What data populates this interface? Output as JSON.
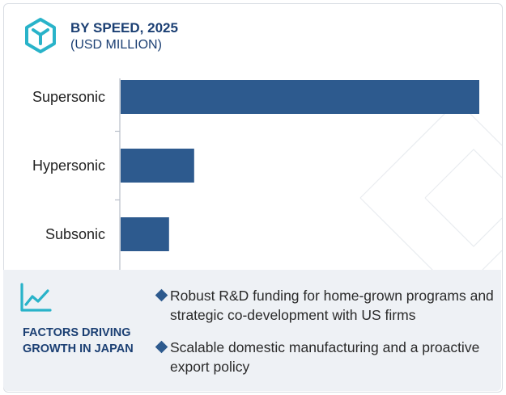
{
  "header": {
    "title": "BY SPEED, 2025",
    "subtitle": "(USD MILLION)"
  },
  "chart_data": {
    "type": "bar",
    "orientation": "horizontal",
    "title": "BY SPEED, 2025",
    "subtitle": "(USD MILLION)",
    "categories": [
      "Supersonic",
      "Hypersonic",
      "Subsonic"
    ],
    "values": [
      100,
      20.5,
      13.5
    ],
    "xlabel": "",
    "ylabel": "",
    "xlim": [
      0,
      100
    ],
    "grid": false,
    "legend": "none",
    "bar_color": "#2d5a8e"
  },
  "factors": {
    "title": "FACTORS DRIVING GROWTH IN JAPAN",
    "icon": "trend-line-icon",
    "items": [
      "Robust R&D funding for home-grown programs and strategic co-development with US firms",
      "Scalable domestic manufacturing and a proactive export policy"
    ]
  },
  "colors": {
    "accent": "#1b3f73",
    "bar": "#2d5a8e",
    "logo": "#29b3c9",
    "panel": "#eef1f5"
  }
}
